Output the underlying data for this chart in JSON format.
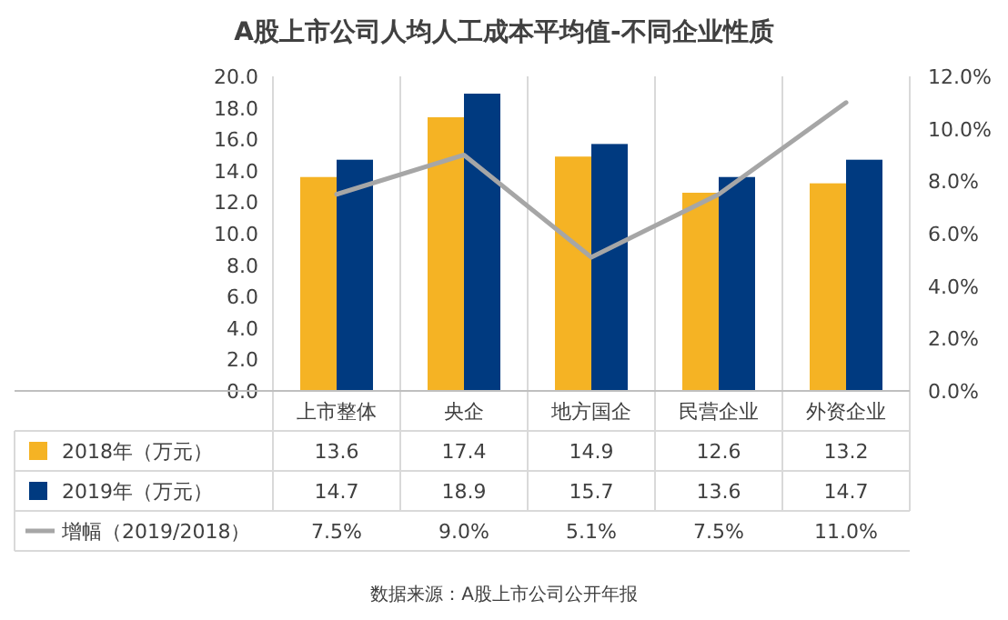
{
  "chart_data": {
    "type": "bar",
    "title": "A股上市公司人均人工成本平均值-不同企业性质",
    "categories": [
      "上市整体",
      "央企",
      "地方国企",
      "民营企业",
      "外资企业"
    ],
    "series": [
      {
        "name": "2018年（万元）",
        "color": "#f5b324",
        "values": [
          13.6,
          17.4,
          14.9,
          12.6,
          13.2
        ],
        "value_labels": [
          "13.6",
          "17.4",
          "14.9",
          "12.6",
          "13.2"
        ]
      },
      {
        "name": "2019年（万元）",
        "color": "#003a80",
        "values": [
          14.7,
          18.9,
          15.7,
          13.6,
          14.7
        ],
        "value_labels": [
          "14.7",
          "18.9",
          "15.7",
          "13.6",
          "14.7"
        ]
      },
      {
        "name": "增幅（2019/2018）",
        "color": "#a6a6a6",
        "type": "line",
        "axis": "y2",
        "values": [
          7.5,
          9.0,
          5.1,
          7.5,
          11.0
        ],
        "value_labels": [
          "7.5%",
          "9.0%",
          "5.1%",
          "7.5%",
          "11.0%"
        ]
      }
    ],
    "ylim": [
      0,
      20
    ],
    "yticks": [
      {
        "value": 0,
        "label": "0.0"
      },
      {
        "value": 2,
        "label": "2.0"
      },
      {
        "value": 4,
        "label": "4.0"
      },
      {
        "value": 6,
        "label": "6.0"
      },
      {
        "value": 8,
        "label": "8.0"
      },
      {
        "value": 10,
        "label": "10.0"
      },
      {
        "value": 12,
        "label": "12.0"
      },
      {
        "value": 14,
        "label": "14.0"
      },
      {
        "value": 16,
        "label": "16.0"
      },
      {
        "value": 18,
        "label": "18.0"
      },
      {
        "value": 20,
        "label": "20.0"
      }
    ],
    "y2lim": [
      0,
      12
    ],
    "y2ticks": [
      {
        "value": 0,
        "label": "0.0%"
      },
      {
        "value": 2,
        "label": "2.0%"
      },
      {
        "value": 4,
        "label": "4.0%"
      },
      {
        "value": 6,
        "label": "6.0%"
      },
      {
        "value": 8,
        "label": "8.0%"
      },
      {
        "value": 10,
        "label": "10.0%"
      },
      {
        "value": 12,
        "label": "12.0%"
      }
    ],
    "legend": "bottom",
    "grid": false,
    "marker": "none",
    "line_style": "solid",
    "annotations": [
      "数据来源：A股上市公司公开年报"
    ]
  }
}
